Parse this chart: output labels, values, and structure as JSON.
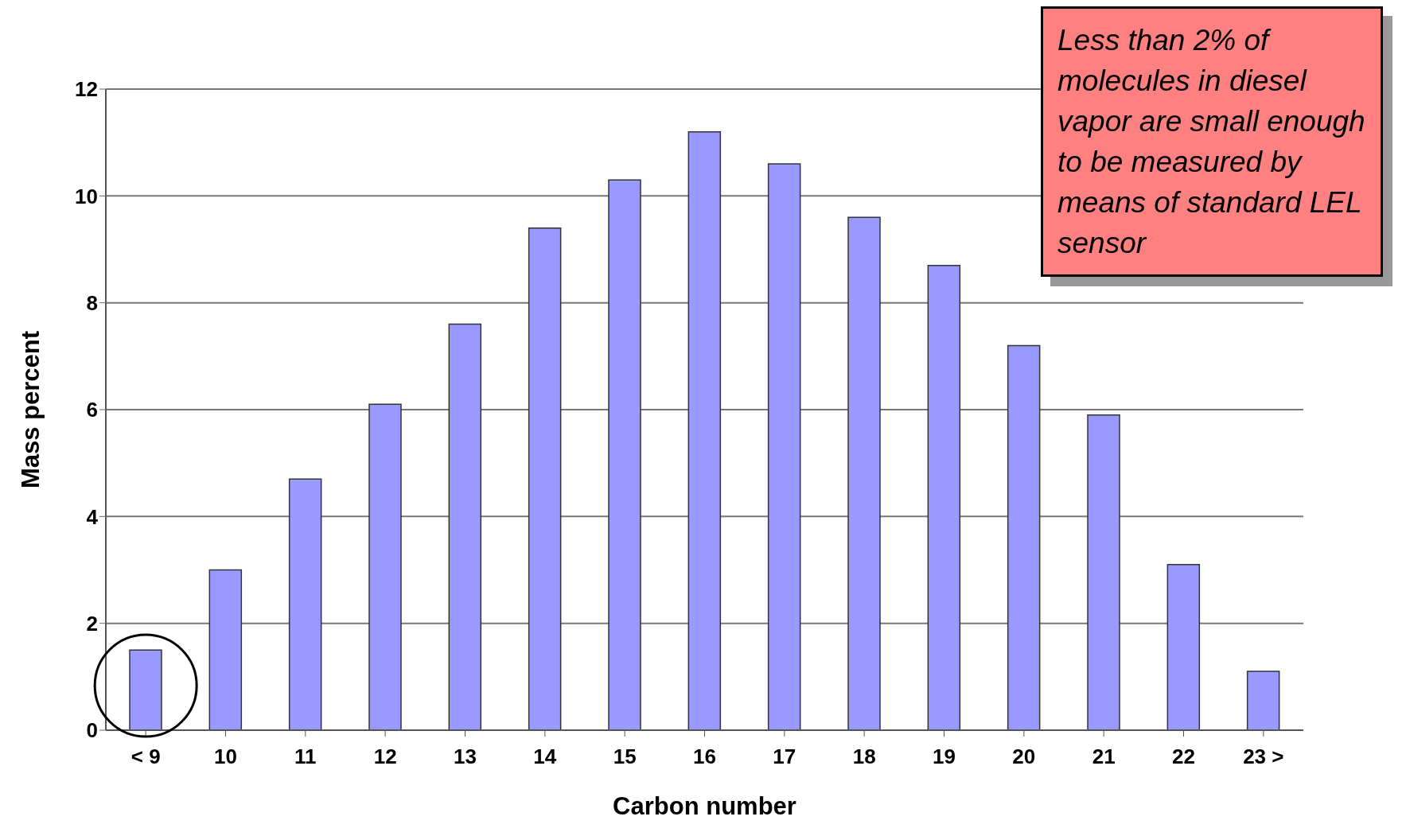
{
  "chart_data": {
    "type": "bar",
    "xlabel": "Carbon number",
    "ylabel": "Mass percent",
    "categories": [
      "< 9",
      "10",
      "11",
      "12",
      "13",
      "14",
      "15",
      "16",
      "17",
      "18",
      "19",
      "20",
      "21",
      "22",
      "23 >"
    ],
    "values": [
      1.5,
      3.0,
      4.7,
      6.1,
      7.6,
      9.4,
      10.3,
      11.2,
      10.6,
      9.6,
      8.7,
      7.2,
      5.9,
      3.1,
      1.1
    ],
    "color": "#9999ff",
    "ylim": [
      0,
      12
    ],
    "yticks": [
      0,
      2,
      4,
      6,
      8,
      10,
      12
    ],
    "grid": "y",
    "legend": false,
    "annotations": [
      "Less than 2% of molecules in diesel vapor are small enough to be measured by means of standard LEL sensor"
    ]
  }
}
